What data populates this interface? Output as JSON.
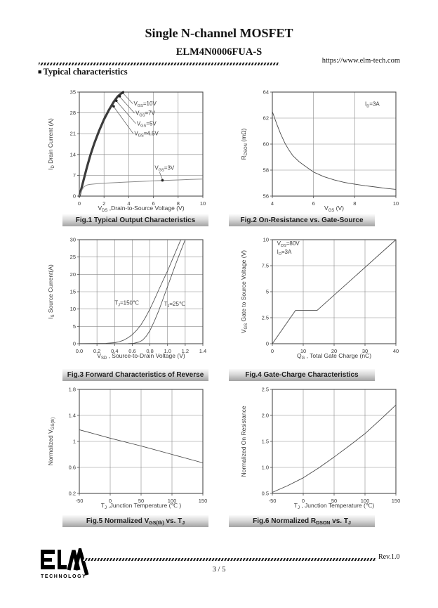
{
  "header": {
    "title": "Single N-channel MOSFET",
    "part_number": "ELM4N0006FUA-S",
    "url": "https://www.elm-tech.com",
    "section_bullet": "■",
    "section_title": "Typical characteristics"
  },
  "footer": {
    "logo_text": "ELM",
    "logo_subtext": "TECHNOLOGY",
    "revision": "Rev.1.0",
    "page": "3 / 5"
  },
  "colors": {
    "caption_bg_top": "#fafafa",
    "caption_bg_bottom": "#a2a2a2",
    "band_curve": "#3c3c3c",
    "gray_curve": "#8a8a8a",
    "line_curve": "#4a4a4a",
    "text": "#3a3a3a"
  },
  "chart_data": [
    {
      "type": "line",
      "caption": "Fig.1 Typical Output Characteristics",
      "xlabel": "V~DS~ ,Drain-to-Source Voltage (V)",
      "ylabel": "I~D~ Drain Current (A)",
      "xlim": [
        0,
        10
      ],
      "ylim": [
        0,
        35
      ],
      "xticks": [
        {
          "v": 0,
          "l": "0"
        },
        {
          "v": 2,
          "l": "2"
        },
        {
          "v": 4,
          "l": "4"
        },
        {
          "v": 6,
          "l": "6"
        },
        {
          "v": 8,
          "l": "8"
        },
        {
          "v": 10,
          "l": "10"
        }
      ],
      "yticks": [
        {
          "v": 0,
          "l": "0"
        },
        {
          "v": 7,
          "l": "7"
        },
        {
          "v": 14,
          "l": "14"
        },
        {
          "v": 21,
          "l": "21"
        },
        {
          "v": 28,
          "l": "28"
        },
        {
          "v": 35,
          "l": "35"
        }
      ],
      "series": [
        {
          "name": "V~GS~=10V/7V/5V/4.5V",
          "color": "#3c3c3c",
          "width": 3.2,
          "points": [
            [
              0,
              0
            ],
            [
              0.15,
              2.2
            ],
            [
              0.35,
              5.5
            ],
            [
              0.6,
              9.5
            ],
            [
              0.9,
              13.8
            ],
            [
              1.2,
              17.6
            ],
            [
              1.6,
              22
            ],
            [
              2.0,
              25.8
            ],
            [
              2.4,
              29
            ],
            [
              2.8,
              31.8
            ],
            [
              3.1,
              33.5
            ],
            [
              3.35,
              34.4
            ],
            [
              3.55,
              35
            ]
          ]
        },
        {
          "name": "V~GS~=3V",
          "color": "#8a8a8a",
          "width": 1,
          "points": [
            [
              0,
              0
            ],
            [
              0.12,
              1.2
            ],
            [
              0.25,
              2.4
            ],
            [
              0.4,
              3.2
            ],
            [
              0.6,
              3.7
            ],
            [
              0.8,
              3.9
            ],
            [
              1.2,
              4.1
            ],
            [
              2,
              4.35
            ],
            [
              3,
              4.55
            ],
            [
              4,
              4.75
            ],
            [
              5,
              4.95
            ],
            [
              6,
              5.15
            ],
            [
              7,
              5.3
            ],
            [
              8,
              5.45
            ],
            [
              9,
              5.6
            ],
            [
              10,
              5.75
            ]
          ]
        }
      ],
      "annotations": [
        {
          "text": "V~GS~=10V",
          "tx": 4.4,
          "ty": 30.5,
          "line": [
            [
              4.32,
              31.1
            ],
            [
              3.55,
              34.6
            ]
          ],
          "dot": [
            3.52,
            34.8
          ]
        },
        {
          "text": "V~GS~=7V",
          "tx": 4.55,
          "ty": 27.3,
          "line": [
            [
              4.47,
              27.9
            ],
            [
              3.28,
              33.4
            ]
          ],
          "dot": [
            3.27,
            33.6
          ]
        },
        {
          "text": "V~GS~=5V",
          "tx": 4.65,
          "ty": 23.8,
          "line": [
            [
              4.57,
              24.4
            ],
            [
              3.02,
              31.9
            ]
          ],
          "dot": [
            3.0,
            32.1
          ]
        },
        {
          "text": "V~GS~=4.5V",
          "tx": 4.45,
          "ty": 20.4,
          "line": [
            [
              4.37,
              21.0
            ],
            [
              2.8,
              30.0
            ]
          ],
          "dot": [
            2.78,
            30.2
          ]
        },
        {
          "text": "V~GS~=3V",
          "tx": 6.1,
          "ty": 8.9,
          "line": [
            [
              6.5,
              8.0
            ],
            [
              6.73,
              5.6
            ]
          ],
          "dot": [
            6.73,
            5.3
          ]
        }
      ]
    },
    {
      "type": "line",
      "caption": "Fig.2 On-Resistance vs. Gate-Source",
      "xlabel": "V~GS~ (V)",
      "ylabel": "R~DSON~ (mΩ)",
      "xlim": [
        4,
        10
      ],
      "ylim": [
        56,
        64
      ],
      "xticks": [
        {
          "v": 4,
          "l": "4"
        },
        {
          "v": 6,
          "l": "6"
        },
        {
          "v": 8,
          "l": "8"
        },
        {
          "v": 10,
          "l": "10"
        }
      ],
      "yticks": [
        {
          "v": 56,
          "l": "56"
        },
        {
          "v": 58,
          "l": "58"
        },
        {
          "v": 60,
          "l": "60"
        },
        {
          "v": 62,
          "l": "62"
        },
        {
          "v": 64,
          "l": "64"
        }
      ],
      "series": [
        {
          "name": "R_DSON vs V_GS",
          "color": "#4a4a4a",
          "width": 0.9,
          "points": [
            [
              4,
              62.5
            ],
            [
              4.2,
              61.6
            ],
            [
              4.4,
              60.8
            ],
            [
              4.6,
              60.1
            ],
            [
              4.8,
              59.55
            ],
            [
              5,
              59.1
            ],
            [
              5.3,
              58.65
            ],
            [
              5.6,
              58.3
            ],
            [
              6,
              57.85
            ],
            [
              6.5,
              57.5
            ],
            [
              7,
              57.25
            ],
            [
              7.5,
              57.05
            ],
            [
              8,
              56.92
            ],
            [
              8.5,
              56.8
            ],
            [
              9,
              56.7
            ],
            [
              9.5,
              56.6
            ],
            [
              10,
              56.52
            ]
          ]
        }
      ],
      "annotations": [
        {
          "text": "I~D~=3A",
          "tx": 8.5,
          "ty": 62.95
        }
      ]
    },
    {
      "type": "line",
      "caption": "Fig.3 Forward Characteristics of Reverse",
      "xlabel": "V~SD~ , Source-to-Drain Voltage (V)",
      "ylabel": "I~S~ Source Current(A)",
      "xlim": [
        0,
        1.4
      ],
      "ylim": [
        0,
        30
      ],
      "xticks": [
        {
          "v": 0,
          "l": "0.0"
        },
        {
          "v": 0.2,
          "l": "0.2"
        },
        {
          "v": 0.4,
          "l": "0.4"
        },
        {
          "v": 0.6,
          "l": "0.6"
        },
        {
          "v": 0.8,
          "l": "0.8"
        },
        {
          "v": 1.0,
          "l": "1.0"
        },
        {
          "v": 1.2,
          "l": "1.2"
        },
        {
          "v": 1.4,
          "l": "1.4"
        }
      ],
      "yticks": [
        {
          "v": 0,
          "l": "0"
        },
        {
          "v": 5,
          "l": "5"
        },
        {
          "v": 10,
          "l": "10"
        },
        {
          "v": 15,
          "l": "15"
        },
        {
          "v": 20,
          "l": "20"
        },
        {
          "v": 25,
          "l": "25"
        },
        {
          "v": 30,
          "l": "30"
        }
      ],
      "series": [
        {
          "name": "T~J~=150℃",
          "color": "#555555",
          "width": 0.9,
          "points": [
            [
              0,
              0.05
            ],
            [
              0.3,
              0.1
            ],
            [
              0.4,
              0.3
            ],
            [
              0.45,
              0.55
            ],
            [
              0.5,
              1.0
            ],
            [
              0.55,
              1.7
            ],
            [
              0.6,
              2.6
            ],
            [
              0.65,
              3.9
            ],
            [
              0.7,
              5.5
            ],
            [
              0.75,
              7.6
            ],
            [
              0.8,
              10
            ],
            [
              0.85,
              12.7
            ],
            [
              0.9,
              15.5
            ],
            [
              0.95,
              18.3
            ],
            [
              1.0,
              21
            ],
            [
              1.05,
              24
            ],
            [
              1.1,
              27
            ],
            [
              1.15,
              30
            ]
          ]
        },
        {
          "name": "T~J~=25℃",
          "color": "#555555",
          "width": 0.9,
          "points": [
            [
              0,
              0
            ],
            [
              0.55,
              0.05
            ],
            [
              0.62,
              0.15
            ],
            [
              0.68,
              0.5
            ],
            [
              0.72,
              1.1
            ],
            [
              0.76,
              2.2
            ],
            [
              0.8,
              3.8
            ],
            [
              0.85,
              6.5
            ],
            [
              0.9,
              9.5
            ],
            [
              0.95,
              13
            ],
            [
              1.0,
              16.5
            ],
            [
              1.05,
              20
            ],
            [
              1.1,
              23.5
            ],
            [
              1.15,
              26.8
            ],
            [
              1.2,
              30
            ]
          ]
        }
      ],
      "annotations": [
        {
          "text": "T~J~=150℃",
          "tx": 0.4,
          "ty": 11.2
        },
        {
          "text": "T~J~=25℃",
          "tx": 0.96,
          "ty": 10.9
        }
      ]
    },
    {
      "type": "line",
      "caption": "Fig.4 Gate-Charge Characteristics",
      "xlabel": "Q~G~ , Total Gate Charge (nC)",
      "ylabel": "V~GS~  Gate to Source Voltage (V)",
      "xlim": [
        0,
        40
      ],
      "ylim": [
        0,
        10
      ],
      "xticks": [
        {
          "v": 0,
          "l": "0"
        },
        {
          "v": 10,
          "l": "10"
        },
        {
          "v": 20,
          "l": "20"
        },
        {
          "v": 30,
          "l": "30"
        },
        {
          "v": 40,
          "l": "40"
        }
      ],
      "yticks": [
        {
          "v": 0,
          "l": "0"
        },
        {
          "v": 2.5,
          "l": "2.5"
        },
        {
          "v": 5,
          "l": "5"
        },
        {
          "v": 7.5,
          "l": "7.5"
        },
        {
          "v": 10,
          "l": "10"
        }
      ],
      "series": [
        {
          "name": "Gate charge curve",
          "color": "#4a4a4a",
          "width": 0.9,
          "points": [
            [
              0,
              0
            ],
            [
              7.5,
              3.2
            ],
            [
              14.5,
              3.2
            ],
            [
              40,
              10
            ]
          ]
        }
      ],
      "annotations": [
        {
          "text": "V~DS~=80V",
          "tx": 1.5,
          "ty": 9.45
        },
        {
          "text": "I~D~=3A",
          "tx": 1.5,
          "ty": 8.65
        }
      ]
    },
    {
      "type": "line",
      "caption": "Fig.5 Normalized V~GS(th)~ vs. T~J~",
      "xlabel": "T~J~ ,Junction Temperature (℃ )",
      "ylabel": "Normalized V~GS(th)~",
      "xlim": [
        -50,
        150
      ],
      "ylim": [
        0.2,
        1.8
      ],
      "xticks": [
        {
          "v": -50,
          "l": "-50"
        },
        {
          "v": 0,
          "l": "0"
        },
        {
          "v": 50,
          "l": "50"
        },
        {
          "v": 100,
          "l": "100"
        },
        {
          "v": 150,
          "l": "150"
        }
      ],
      "yticks": [
        {
          "v": 0.2,
          "l": "0.2"
        },
        {
          "v": 0.6,
          "l": "0.6"
        },
        {
          "v": 1,
          "l": "1"
        },
        {
          "v": 1.4,
          "l": "1.4"
        },
        {
          "v": 1.8,
          "l": "1.8"
        }
      ],
      "series": [
        {
          "name": "Normalized V_GS(th)",
          "color": "#4a4a4a",
          "width": 0.9,
          "points": [
            [
              -50,
              1.18
            ],
            [
              0,
              1.05
            ],
            [
              50,
              0.93
            ],
            [
              100,
              0.8
            ],
            [
              150,
              0.67
            ]
          ]
        }
      ],
      "annotations": []
    },
    {
      "type": "line",
      "caption": "Fig.6 Normalized R~DSON~ vs. T~J~",
      "xlabel": "T~J~ , Junction Temperature (℃)",
      "ylabel": "Normalized  On Resistance",
      "xlim": [
        -50,
        150
      ],
      "ylim": [
        0.5,
        2.5
      ],
      "xticks": [
        {
          "v": -50,
          "l": "-50"
        },
        {
          "v": 0,
          "l": "0"
        },
        {
          "v": 50,
          "l": "50"
        },
        {
          "v": 100,
          "l": "100"
        },
        {
          "v": 150,
          "l": "150"
        }
      ],
      "yticks": [
        {
          "v": 0.5,
          "l": "0.5"
        },
        {
          "v": 1.0,
          "l": "1.0"
        },
        {
          "v": 1.5,
          "l": "1.5"
        },
        {
          "v": 2.0,
          "l": "2.0"
        },
        {
          "v": 2.5,
          "l": "2.5"
        }
      ],
      "series": [
        {
          "name": "Normalized R_DSON",
          "color": "#4a4a4a",
          "width": 0.9,
          "points": [
            [
              -50,
              0.52
            ],
            [
              -25,
              0.65
            ],
            [
              0,
              0.8
            ],
            [
              25,
              0.99
            ],
            [
              50,
              1.2
            ],
            [
              75,
              1.42
            ],
            [
              100,
              1.65
            ],
            [
              125,
              1.92
            ],
            [
              150,
              2.2
            ]
          ]
        }
      ],
      "annotations": []
    }
  ]
}
